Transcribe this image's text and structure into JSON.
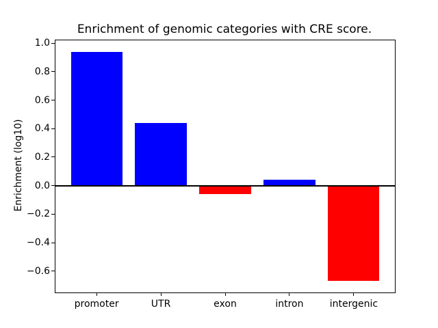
{
  "chart_data": {
    "type": "bar",
    "title": "Enrichment of genomic categories with CRE score.",
    "xlabel": "",
    "ylabel": "Enrichment (log10)",
    "categories": [
      "promoter",
      "UTR",
      "exon",
      "intron",
      "intergenic"
    ],
    "values": [
      0.94,
      0.44,
      -0.06,
      0.04,
      -0.67
    ],
    "positive_color": "#0000ff",
    "negative_color": "#ff0000",
    "axis_color": "#000000",
    "background_color": "#ffffff",
    "ylim": [
      -0.75,
      1.02
    ],
    "xlim": [
      -0.64,
      4.64
    ],
    "yticks": [
      1.0,
      0.8,
      0.6,
      0.4,
      0.2,
      0.0,
      -0.2,
      -0.4,
      -0.6
    ],
    "ytick_labels": [
      "1.0",
      "0.8",
      "0.6",
      "0.4",
      "0.2",
      "0.0",
      "−0.2",
      "−0.4",
      "−0.6"
    ],
    "bar_width": 0.8,
    "grid": false,
    "legend": null,
    "zero_line": true
  }
}
